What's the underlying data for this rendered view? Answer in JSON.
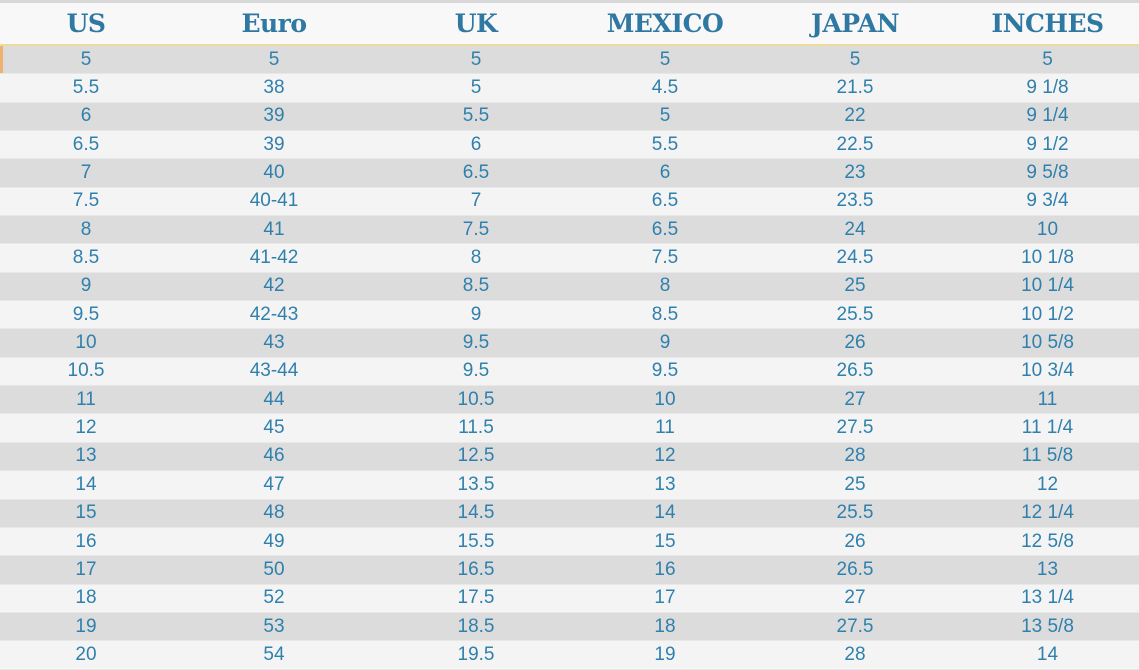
{
  "headers": [
    "US",
    "Euro",
    "UK",
    "MEXICO",
    "JAPAN",
    "INCHES"
  ],
  "rows": [
    [
      "5",
      "5",
      "5",
      "5",
      "5",
      "5"
    ],
    [
      "5.5",
      "38",
      "5",
      "4.5",
      "21.5",
      "9 1/8"
    ],
    [
      "6",
      "39",
      "5.5",
      "5",
      "22",
      "9 1/4"
    ],
    [
      "6.5",
      "39",
      "6",
      "5.5",
      "22.5",
      "9 1/2"
    ],
    [
      "7",
      "40",
      "6.5",
      "6",
      "23",
      "9 5/8"
    ],
    [
      "7.5",
      "40-41",
      "7",
      "6.5",
      "23.5",
      "9 3/4"
    ],
    [
      "8",
      "41",
      "7.5",
      "6.5",
      "24",
      "10"
    ],
    [
      "8.5",
      "41-42",
      "8",
      "7.5",
      "24.5",
      "10 1/8"
    ],
    [
      "9",
      "42",
      "8.5",
      "8",
      "25",
      "10 1/4"
    ],
    [
      "9.5",
      "42-43",
      "9",
      "8.5",
      "25.5",
      "10 1/2"
    ],
    [
      "10",
      "43",
      "9.5",
      "9",
      "26",
      "10 5/8"
    ],
    [
      "10.5",
      "43-44",
      "9.5",
      "9.5",
      "26.5",
      "10 3/4"
    ],
    [
      "11",
      "44",
      "10.5",
      "10",
      "27",
      "11"
    ],
    [
      "12",
      "45",
      "11.5",
      "11",
      "27.5",
      "11 1/4"
    ],
    [
      "13",
      "46",
      "12.5",
      "12",
      "28",
      "11 5/8"
    ],
    [
      "14",
      "47",
      "13.5",
      "13",
      "25",
      "12"
    ],
    [
      "15",
      "48",
      "14.5",
      "14",
      "25.5",
      "12 1/4"
    ],
    [
      "16",
      "49",
      "15.5",
      "15",
      "26",
      "12 5/8"
    ],
    [
      "17",
      "50",
      "16.5",
      "16",
      "26.5",
      "13"
    ],
    [
      "18",
      "52",
      "17.5",
      "17",
      "27",
      "13 1/4"
    ],
    [
      "19",
      "53",
      "18.5",
      "18",
      "27.5",
      "13 5/8"
    ],
    [
      "20",
      "54",
      "19.5",
      "19",
      "28",
      "14"
    ]
  ],
  "colors": {
    "header_text": "#2e78a2",
    "cell_text": "#2f80ad",
    "row_dark": "#dcdcdc",
    "row_light": "#f4f4f4"
  }
}
